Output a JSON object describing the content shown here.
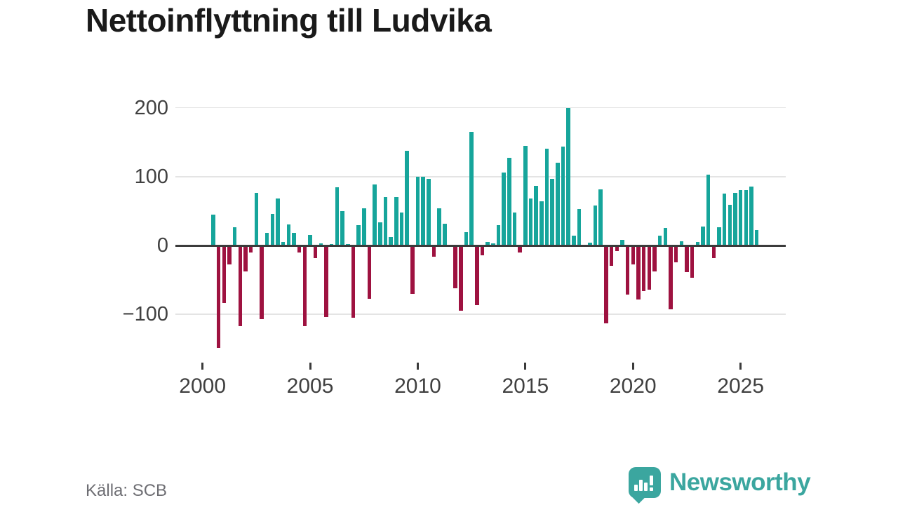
{
  "title": "Nettoinflyttning till Ludvika",
  "source": "Källa: SCB",
  "brand": {
    "name": "Newsworthy"
  },
  "colors": {
    "positive": "#16a59b",
    "negative": "#9e1240",
    "axis": "#3b3b3b",
    "grid": "#e4e4e4",
    "tick_label": "#404040",
    "title": "#1a1a1a",
    "source": "#6e6e73",
    "brand": "#3ba69f"
  },
  "chart_data": {
    "type": "bar",
    "title": "Nettoinflyttning till Ludvika",
    "source": "Källa: SCB",
    "grid": true,
    "legend": false,
    "ylim": [
      -160,
      215
    ],
    "yticks": [
      {
        "value": 200,
        "label": "200"
      },
      {
        "value": 100,
        "label": "100"
      },
      {
        "value": 0,
        "label": "0"
      },
      {
        "value": -100,
        "label": "−100"
      }
    ],
    "xticks": [
      {
        "label": "2000",
        "index": -2
      },
      {
        "label": "2005",
        "index": 18
      },
      {
        "label": "2010",
        "index": 38
      },
      {
        "label": "2015",
        "index": 58
      },
      {
        "label": "2020",
        "index": 78
      },
      {
        "label": "2025",
        "index": 98
      }
    ],
    "x": [
      "2000-Q3",
      "2000-Q4",
      "2001-Q1",
      "2001-Q2",
      "2001-Q3",
      "2001-Q4",
      "2002-Q1",
      "2002-Q2",
      "2002-Q3",
      "2002-Q4",
      "2003-Q1",
      "2003-Q2",
      "2003-Q3",
      "2003-Q4",
      "2004-Q1",
      "2004-Q2",
      "2004-Q3",
      "2004-Q4",
      "2005-Q1",
      "2005-Q2",
      "2005-Q3",
      "2005-Q4",
      "2006-Q1",
      "2006-Q2",
      "2006-Q3",
      "2006-Q4",
      "2007-Q1",
      "2007-Q2",
      "2007-Q3",
      "2007-Q4",
      "2008-Q1",
      "2008-Q2",
      "2008-Q3",
      "2008-Q4",
      "2009-Q1",
      "2009-Q2",
      "2009-Q3",
      "2009-Q4",
      "2010-Q1",
      "2010-Q2",
      "2010-Q3",
      "2010-Q4",
      "2011-Q1",
      "2011-Q2",
      "2011-Q3",
      "2011-Q4",
      "2012-Q1",
      "2012-Q2",
      "2012-Q3",
      "2012-Q4",
      "2013-Q1",
      "2013-Q2",
      "2013-Q3",
      "2013-Q4",
      "2014-Q1",
      "2014-Q2",
      "2014-Q3",
      "2014-Q4",
      "2015-Q1",
      "2015-Q2",
      "2015-Q3",
      "2015-Q4",
      "2016-Q1",
      "2016-Q2",
      "2016-Q3",
      "2016-Q4",
      "2017-Q1",
      "2017-Q2",
      "2017-Q3",
      "2017-Q4",
      "2018-Q1",
      "2018-Q2",
      "2018-Q3",
      "2018-Q4",
      "2019-Q1",
      "2019-Q2",
      "2019-Q3",
      "2019-Q4",
      "2020-Q1",
      "2020-Q2",
      "2020-Q3",
      "2020-Q4",
      "2021-Q1",
      "2021-Q2",
      "2021-Q3",
      "2021-Q4",
      "2022-Q1",
      "2022-Q2",
      "2022-Q3",
      "2022-Q4",
      "2023-Q1",
      "2023-Q2",
      "2023-Q3",
      "2023-Q4",
      "2024-Q1",
      "2024-Q2",
      "2024-Q3",
      "2024-Q4",
      "2025-Q1",
      "2025-Q2",
      "2025-Q3",
      "2025-Q4"
    ],
    "values": [
      45,
      -149,
      -84,
      -28,
      26,
      -117,
      -38,
      -10,
      76,
      -107,
      18,
      46,
      68,
      5,
      31,
      18,
      -10,
      -117,
      15,
      -18,
      3,
      -104,
      2,
      85,
      50,
      2,
      -105,
      30,
      54,
      -77,
      89,
      34,
      70,
      12,
      70,
      48,
      137,
      -70,
      100,
      100,
      97,
      -16,
      54,
      32,
      0,
      -62,
      -95,
      19,
      165,
      -87,
      -14,
      5,
      3,
      30,
      106,
      127,
      48,
      -10,
      145,
      68,
      87,
      64,
      141,
      97,
      120,
      144,
      200,
      14,
      53,
      0,
      4,
      58,
      81,
      -113,
      -30,
      -8,
      8,
      -71,
      -27,
      -78,
      -66,
      -64,
      -38,
      14,
      25,
      -93,
      -24,
      6,
      -39,
      -47,
      5,
      27,
      103,
      -18,
      26,
      75,
      59,
      76,
      80,
      80,
      86,
      22
    ]
  }
}
